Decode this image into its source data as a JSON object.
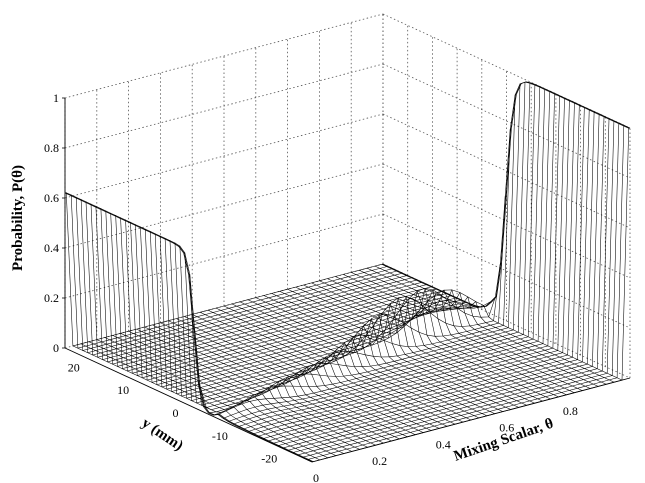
{
  "chart_data": {
    "type": "surface",
    "title": "",
    "xlabel": "Mixing Scalar, θ",
    "ylabel": "y (mm)",
    "zlabel": "Probability, P(θ)",
    "xlim": [
      0,
      1
    ],
    "ylim": [
      -25,
      25
    ],
    "zlim": [
      0,
      1
    ],
    "x_ticks": [
      "0",
      "0.2",
      "0.4",
      "0.6",
      "0.8"
    ],
    "x_tick_values": [
      0,
      0.2,
      0.4,
      0.6,
      0.8
    ],
    "y_ticks": [
      "20",
      "10",
      "0",
      "-10",
      "-20"
    ],
    "y_tick_values": [
      20,
      10,
      0,
      -10,
      -20
    ],
    "z_ticks": [
      "0",
      "0.2",
      "0.4",
      "0.6",
      "0.8",
      "1"
    ],
    "z_tick_values": [
      0,
      0.2,
      0.4,
      0.6,
      0.8,
      1
    ],
    "grid": true,
    "mesh_color": "#000000",
    "grid_color": "#555555",
    "surface_features": [
      {
        "location_theta": 0.0,
        "location_y_range": [
          -3,
          25
        ],
        "peak_probability": 0.62
      },
      {
        "location_theta": 1.0,
        "location_y_range": [
          -25,
          0
        ],
        "peak_probability": 1.0
      },
      {
        "location_theta": 0.82,
        "location_y": 1,
        "peak_probability": 0.2
      },
      {
        "location_theta": 0.08,
        "location_y": -4,
        "peak_probability": 0.06
      }
    ]
  }
}
